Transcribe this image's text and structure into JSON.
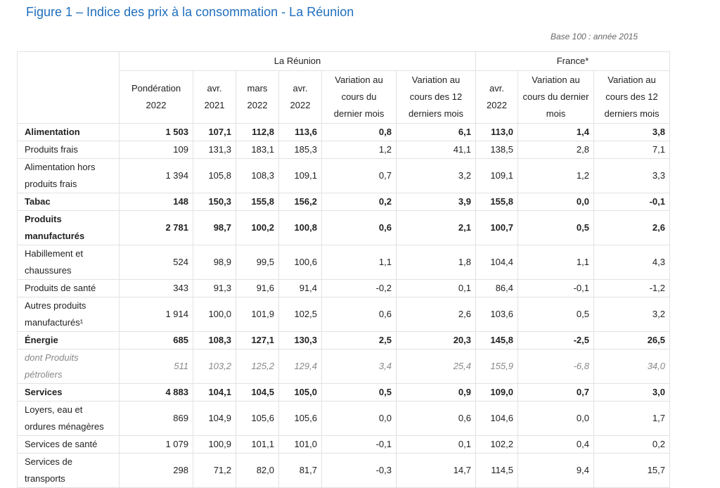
{
  "title": "Figure 1 – Indice des prix à la consommation - La Réunion",
  "base_note": "Base 100 : année 2015",
  "header": {
    "group_reunion": "La Réunion",
    "group_france": "France*",
    "columns": [
      "Pondération 2022",
      "avr. 2021",
      "mars 2022",
      "avr. 2022",
      "Variation au cours du dernier mois",
      "Variation au cours des 12 derniers mois",
      "avr. 2022",
      "Variation au cours du dernier mois",
      "Variation au cours des 12 derniers mois"
    ]
  },
  "rows": [
    {
      "label": "Alimentation",
      "style": "bold",
      "values": [
        "1 503",
        "107,1",
        "112,8",
        "113,6",
        "0,8",
        "6,1",
        "113,0",
        "1,4",
        "3,8"
      ]
    },
    {
      "label": "Produits frais",
      "style": "normal",
      "values": [
        "109",
        "131,3",
        "183,1",
        "185,3",
        "1,2",
        "41,1",
        "138,5",
        "2,8",
        "7,1"
      ]
    },
    {
      "label": "Alimentation hors produits frais",
      "style": "normal",
      "values": [
        "1 394",
        "105,8",
        "108,3",
        "109,1",
        "0,7",
        "3,2",
        "109,1",
        "1,2",
        "3,3"
      ]
    },
    {
      "label": "Tabac",
      "style": "bold",
      "values": [
        "148",
        "150,3",
        "155,8",
        "156,2",
        "0,2",
        "3,9",
        "155,8",
        "0,0",
        "-0,1"
      ]
    },
    {
      "label": "Produits manufacturés",
      "style": "bold",
      "values": [
        "2 781",
        "98,7",
        "100,2",
        "100,8",
        "0,6",
        "2,1",
        "100,7",
        "0,5",
        "2,6"
      ]
    },
    {
      "label": "Habillement et chaussures",
      "style": "normal",
      "values": [
        "524",
        "98,9",
        "99,5",
        "100,6",
        "1,1",
        "1,8",
        "104,4",
        "1,1",
        "4,3"
      ]
    },
    {
      "label": "Produits de santé",
      "style": "normal",
      "values": [
        "343",
        "91,3",
        "91,6",
        "91,4",
        "-0,2",
        "0,1",
        "86,4",
        "-0,1",
        "-1,2"
      ]
    },
    {
      "label": "Autres produits manufacturés¹",
      "style": "normal",
      "values": [
        "1 914",
        "100,0",
        "101,9",
        "102,5",
        "0,6",
        "2,6",
        "103,6",
        "0,5",
        "3,2"
      ]
    },
    {
      "label": "Énergie",
      "style": "bold",
      "values": [
        "685",
        "108,3",
        "127,1",
        "130,3",
        "2,5",
        "20,3",
        "145,8",
        "-2,5",
        "26,5"
      ]
    },
    {
      "label": "dont Produits pétroliers",
      "style": "italic",
      "values": [
        "511",
        "103,2",
        "125,2",
        "129,4",
        "3,4",
        "25,4",
        "155,9",
        "-6,8",
        "34,0"
      ]
    },
    {
      "label": "Services",
      "style": "bold",
      "values": [
        "4 883",
        "104,1",
        "104,5",
        "105,0",
        "0,5",
        "0,9",
        "109,0",
        "0,7",
        "3,0"
      ]
    },
    {
      "label": "Loyers, eau et ordures ménagères",
      "style": "normal",
      "values": [
        "869",
        "104,9",
        "105,6",
        "105,6",
        "0,0",
        "0,6",
        "104,6",
        "0,0",
        "1,7"
      ]
    },
    {
      "label": "Services de santé",
      "style": "normal",
      "values": [
        "1 079",
        "100,9",
        "101,1",
        "101,0",
        "-0,1",
        "0,1",
        "102,2",
        "0,4",
        "0,2"
      ]
    },
    {
      "label": "Services de transports",
      "style": "normal",
      "values": [
        "298",
        "71,2",
        "82,0",
        "81,7",
        "-0,3",
        "14,7",
        "114,5",
        "9,4",
        "15,7"
      ]
    }
  ]
}
